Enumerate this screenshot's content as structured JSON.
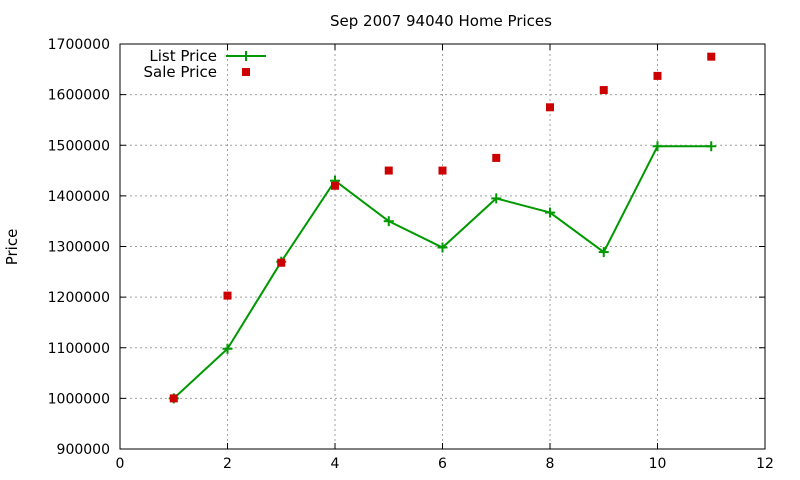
{
  "chart_data": {
    "type": "line",
    "title": "Sep 2007 94040 Home Prices",
    "xlabel": "",
    "ylabel": "Price",
    "xlim": [
      0,
      12
    ],
    "ylim": [
      900000,
      1700000
    ],
    "x_ticks": [
      0,
      2,
      4,
      6,
      8,
      10,
      12
    ],
    "y_ticks": [
      900000,
      1000000,
      1100000,
      1200000,
      1300000,
      1400000,
      1500000,
      1600000,
      1700000
    ],
    "grid": true,
    "legend_position": "top-left",
    "series": [
      {
        "name": "List Price",
        "style": "line-cross",
        "color": "#009900",
        "x": [
          1,
          2,
          3,
          4,
          5,
          6,
          7,
          8,
          9,
          10,
          11
        ],
        "y": [
          1000000,
          1098000,
          1270000,
          1430000,
          1350000,
          1298000,
          1395000,
          1367000,
          1289000,
          1498000,
          1498000
        ]
      },
      {
        "name": "Sale Price",
        "style": "square-marker",
        "color": "#cc0000",
        "x": [
          1,
          2,
          3,
          4,
          5,
          6,
          7,
          8,
          9,
          10,
          11
        ],
        "y": [
          1000000,
          1203000,
          1268000,
          1420000,
          1450000,
          1450000,
          1475000,
          1575000,
          1609000,
          1637000,
          1675000
        ]
      }
    ]
  }
}
